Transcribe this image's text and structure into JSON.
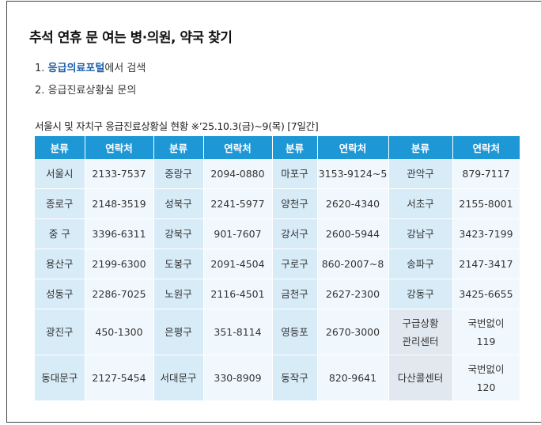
{
  "title": "추석 연휴 문 여는 병·의원, 약국 찾기",
  "steps": {
    "step1_prefix": "1. ",
    "step1_link": "응급의료포털",
    "step1_suffix": "에서 검색",
    "step2": "2. 응급진료상황실 문의"
  },
  "table_caption": "서울시 및 자치구 응급진료상황실 현황 ※’25.10.3(금)~9(목) [7일간]",
  "table": {
    "headers": [
      "분류",
      "연락처",
      "분류",
      "연락처",
      "분류",
      "연락처",
      "분류",
      "연락처"
    ],
    "rows": [
      [
        "서울시",
        "2133-7537",
        "중랑구",
        "2094-0880",
        "마포구",
        "3153-9124~5",
        "관악구",
        "879-7117"
      ],
      [
        "종로구",
        "2148-3519",
        "성북구",
        "2241-5977",
        "양천구",
        "2620-4340",
        "서초구",
        "2155-8001"
      ],
      [
        "중 구",
        "3396-6311",
        "강북구",
        "901-7607",
        "강서구",
        "2600-5944",
        "강남구",
        "3423-7199"
      ],
      [
        "용산구",
        "2199-6300",
        "도봉구",
        "2091-4504",
        "구로구",
        "860-2007~8",
        "송파구",
        "2147-3417"
      ],
      [
        "성동구",
        "2286-7025",
        "노원구",
        "2116-4501",
        "금천구",
        "2627-2300",
        "강동구",
        "3425-6655"
      ],
      [
        "광진구",
        "450-1300",
        "은평구",
        "351-8114",
        "영등포",
        "2670-3000",
        "구급상황\n관리센터",
        "국번없이\n119"
      ],
      [
        "동대문구",
        "2127-5454",
        "서대문구",
        "330-8909",
        "동작구",
        "820-9641",
        "다산콜센터",
        "국번없이\n120"
      ]
    ]
  }
}
